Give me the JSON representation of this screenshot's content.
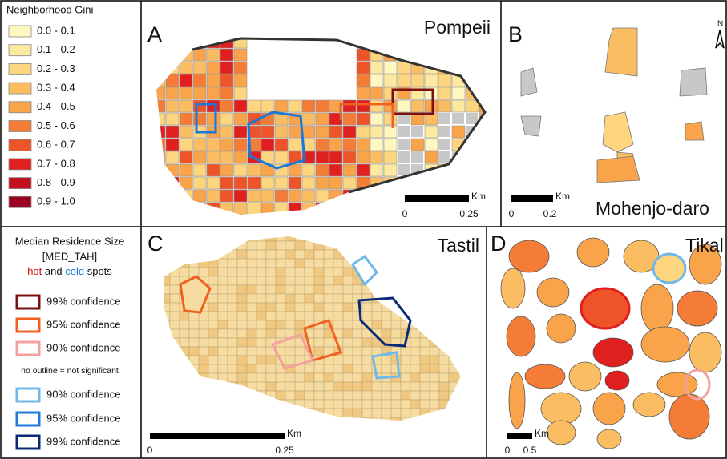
{
  "legend_gini": {
    "title": "Neighborhood Gini",
    "items": [
      {
        "label": "0.0 - 0.1",
        "color": "#fff7c0"
      },
      {
        "label": "0.1 - 0.2",
        "color": "#fde9a0"
      },
      {
        "label": "0.2 - 0.3",
        "color": "#fdd57e"
      },
      {
        "label": "0.3 - 0.4",
        "color": "#fbbd62"
      },
      {
        "label": "0.4 - 0.5",
        "color": "#f9a34a"
      },
      {
        "label": "0.5 - 0.6",
        "color": "#f47c36"
      },
      {
        "label": "0.6 - 0.7",
        "color": "#ee5428"
      },
      {
        "label": "0.7 - 0.8",
        "color": "#e0201e"
      },
      {
        "label": "0.8 - 0.9",
        "color": "#c4101e"
      },
      {
        "label": "0.9 - 1.0",
        "color": "#9c0020"
      }
    ]
  },
  "legend_hotspot": {
    "title_line1": "Median Residence Size",
    "title_line2": "[MED_TAH]",
    "hot": "hot",
    "and": "and",
    "cold": "cold",
    "spots": "spots",
    "note": "no outline = not significant",
    "hot_items": [
      {
        "label": "99% confidence",
        "color": "#7a1010"
      },
      {
        "label": "95% confidence",
        "color": "#f06020"
      },
      {
        "label": "90% confidence",
        "color": "#f4a0a0"
      }
    ],
    "cold_items": [
      {
        "label": "90% confidence",
        "color": "#70b8e8"
      },
      {
        "label": "95% confidence",
        "color": "#1a78d8"
      },
      {
        "label": "99% confidence",
        "color": "#0a2a78"
      }
    ]
  },
  "panels": [
    {
      "letter": "A",
      "name": "Pompeii",
      "scale_unit": "Km",
      "scale_start": "0",
      "scale_end": "0.25"
    },
    {
      "letter": "B",
      "name": "Mohenjo-daro",
      "scale_unit": "Km",
      "scale_start": "0",
      "scale_end": "0.2",
      "north": "N"
    },
    {
      "letter": "C",
      "name": "Tastil",
      "scale_unit": "Km",
      "scale_start": "0",
      "scale_end": "0.25"
    },
    {
      "letter": "D",
      "name": "Tikal",
      "scale_unit": "Km",
      "scale_start": "0",
      "scale_end": "0.5"
    }
  ]
}
